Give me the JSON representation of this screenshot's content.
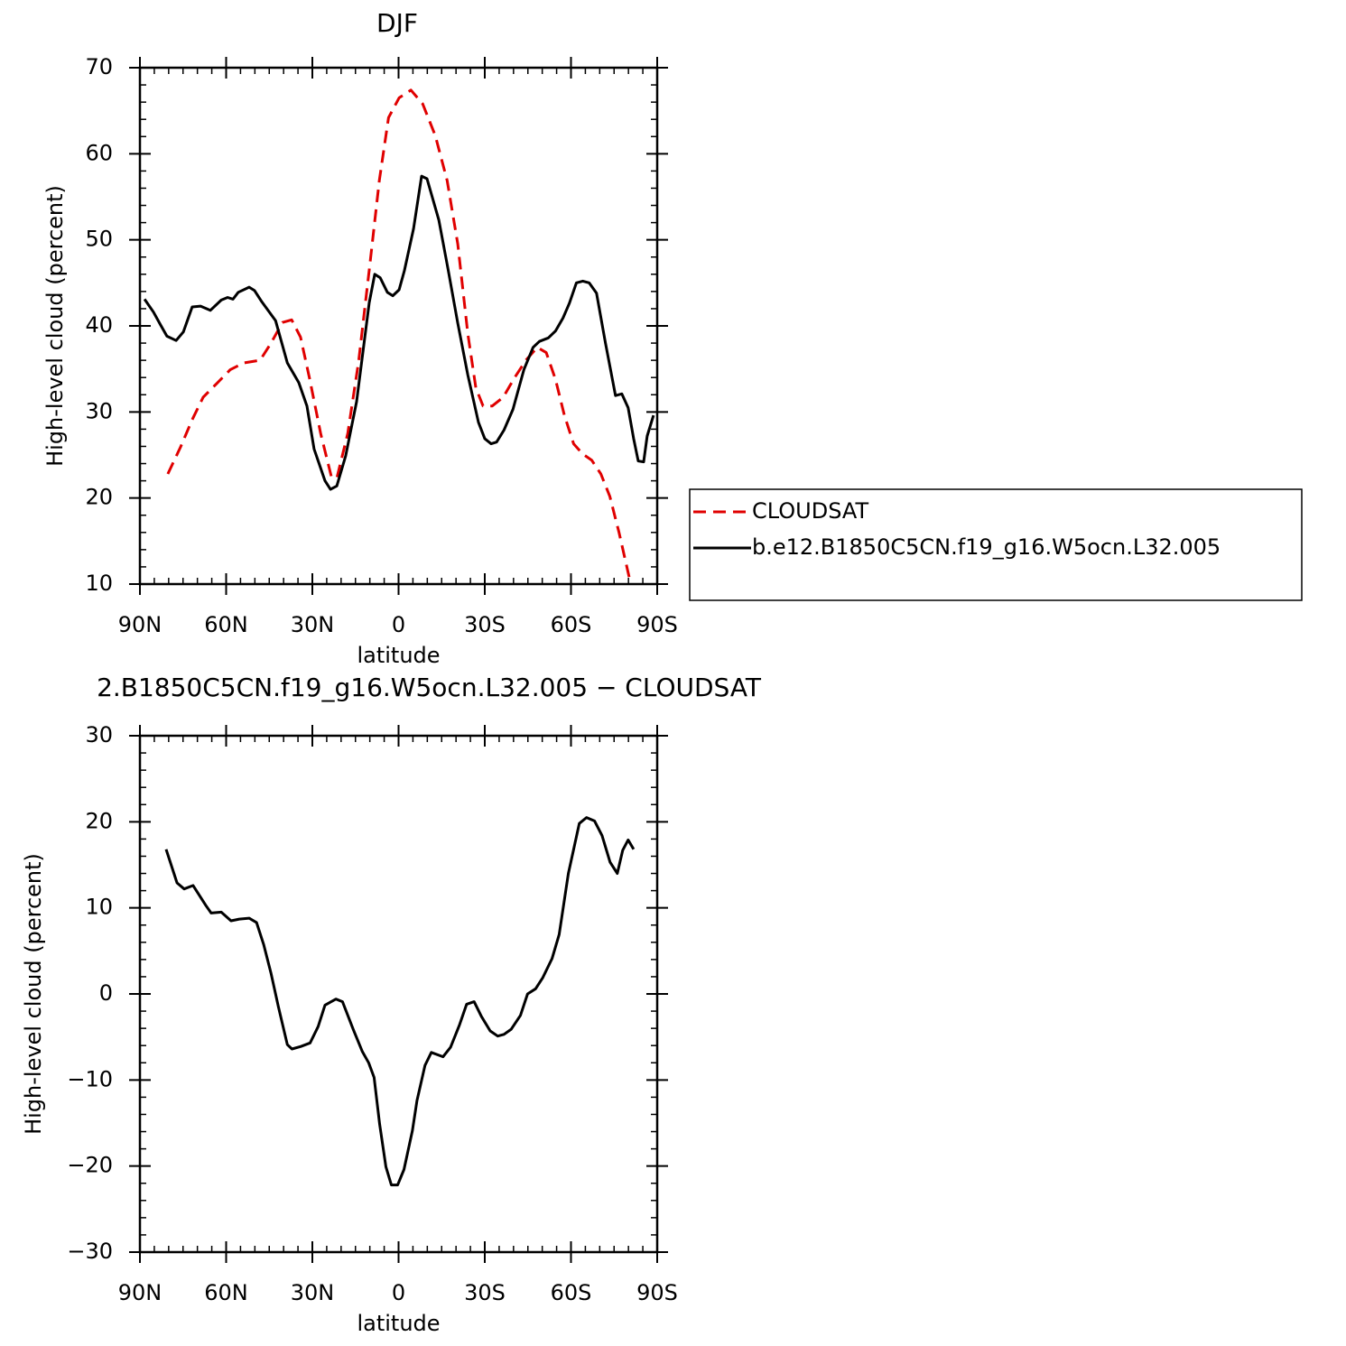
{
  "chart_data": [
    {
      "type": "line",
      "title": "DJF",
      "x_label": "latitude",
      "y_label": "High-level cloud (percent)",
      "xlim": [
        90,
        -90
      ],
      "xticks": [
        {
          "value": 90,
          "label": "90N"
        },
        {
          "value": 60,
          "label": "60N"
        },
        {
          "value": 30,
          "label": "30N"
        },
        0,
        {
          "value": -30,
          "label": "30S"
        },
        {
          "value": -60,
          "label": "60S"
        },
        {
          "value": -90,
          "label": "90S"
        }
      ],
      "ylim": [
        10,
        70
      ],
      "yticks": [
        10,
        20,
        30,
        40,
        50,
        60,
        70
      ],
      "legend": "right",
      "series": [
        {
          "name": "CLOUDSAT",
          "color": "#e00000",
          "dash": true,
          "x": [
            80.3,
            75.9,
            71.8,
            68.0,
            63.3,
            58.6,
            53.9,
            48.2,
            44.4,
            40.4,
            37.2,
            34.1,
            30.9,
            27.1,
            23.4,
            21.5,
            17.7,
            13.9,
            9.9,
            6.7,
            3.5,
            -0.2,
            -4.3,
            -8.4,
            -12.8,
            -16.9,
            -20.6,
            -24.1,
            -26.9,
            -29.4,
            -32.6,
            -36.4,
            -40.4,
            -44.5,
            -48.3,
            -51.4,
            -54.6,
            -57.7,
            -60.9,
            -64.1,
            -67.2,
            -70.4,
            -73.5,
            -76.7,
            -80.8
          ],
          "values": [
            22.8,
            25.9,
            29.1,
            31.7,
            33.3,
            34.9,
            35.7,
            36.0,
            38.0,
            40.4,
            40.7,
            38.7,
            33.8,
            27.5,
            22.5,
            22.3,
            27.5,
            35.9,
            47.4,
            56.9,
            64.2,
            66.5,
            67.4,
            65.8,
            62.1,
            56.9,
            49.5,
            39.1,
            32.8,
            30.7,
            30.7,
            31.7,
            34.0,
            36.1,
            37.5,
            36.9,
            33.8,
            29.6,
            26.3,
            25.1,
            24.4,
            22.8,
            20.2,
            16.0,
            10.0
          ]
        },
        {
          "name": "b.e12.B1850C5CN.f19_g16.W5ocn.L32.005",
          "color": "#000000",
          "dash": false,
          "x": [
            88.4,
            85.3,
            82.8,
            80.6,
            77.4,
            74.9,
            71.8,
            68.9,
            65.5,
            61.7,
            59.5,
            57.6,
            55.8,
            52.0,
            50.1,
            47.6,
            42.8,
            38.7,
            34.7,
            31.9,
            29.4,
            25.6,
            23.7,
            21.5,
            18.4,
            14.6,
            10.2,
            8.3,
            6.4,
            3.9,
            2.0,
            -0.2,
            -2.0,
            -5.2,
            -8.0,
            -9.9,
            -14.0,
            -17.2,
            -20.6,
            -24.1,
            -27.8,
            -30.0,
            -32.2,
            -34.1,
            -36.7,
            -39.8,
            -43.6,
            -46.8,
            -49.0,
            -52.1,
            -54.6,
            -57.2,
            -59.4,
            -61.9,
            -64.1,
            -66.3,
            -68.9,
            -72.0,
            -75.5,
            -77.7,
            -79.9,
            -81.8,
            -83.4,
            -85.3,
            -86.5,
            -88.7
          ],
          "values": [
            43.1,
            41.6,
            40.1,
            38.8,
            38.3,
            39.3,
            42.2,
            42.3,
            41.8,
            43.0,
            43.3,
            43.1,
            43.9,
            44.5,
            44.1,
            42.8,
            40.6,
            35.7,
            33.4,
            30.7,
            25.7,
            22.0,
            21.0,
            21.4,
            24.9,
            31.2,
            42.7,
            46.0,
            45.6,
            43.9,
            43.5,
            44.2,
            46.4,
            51.3,
            57.4,
            57.1,
            52.3,
            46.6,
            40.3,
            34.3,
            28.8,
            26.9,
            26.3,
            26.5,
            27.9,
            30.3,
            34.9,
            37.5,
            38.2,
            38.6,
            39.4,
            40.9,
            42.6,
            45.0,
            45.2,
            45.0,
            43.8,
            38.0,
            31.9,
            32.1,
            30.5,
            26.9,
            24.3,
            24.2,
            27.2,
            29.6
          ]
        }
      ]
    },
    {
      "type": "line",
      "title": "2.B1850C5CN.f19_g16.W5ocn.L32.005 − CLOUDSAT",
      "x_label": "latitude",
      "y_label": "High-level cloud (percent)",
      "xlim": [
        90,
        -90
      ],
      "xticks": [
        {
          "value": 90,
          "label": "90N"
        },
        {
          "value": 60,
          "label": "60N"
        },
        {
          "value": 30,
          "label": "30N"
        },
        0,
        {
          "value": -30,
          "label": "30S"
        },
        {
          "value": -60,
          "label": "60S"
        },
        {
          "value": -90,
          "label": "90S"
        }
      ],
      "ylim": [
        -30,
        30
      ],
      "yticks": [
        {
          "value": -30,
          "label": "−30"
        },
        {
          "value": -20,
          "label": "−20"
        },
        {
          "value": -10,
          "label": "−10"
        },
        0,
        10,
        20,
        30
      ],
      "series": [
        {
          "color": "#000000",
          "dash": false,
          "x": [
            80.9,
            77.1,
            74.6,
            71.5,
            67.1,
            65.2,
            61.7,
            58.3,
            55.4,
            52.0,
            49.4,
            46.9,
            44.4,
            41.8,
            38.7,
            37.1,
            34.0,
            30.8,
            28.0,
            25.6,
            21.8,
            19.5,
            15.8,
            12.6,
            10.4,
            8.5,
            6.6,
            4.4,
            2.5,
            0.3,
            -1.9,
            -4.8,
            -6.4,
            -9.2,
            -11.4,
            -15.5,
            -18.1,
            -21.2,
            -23.7,
            -26.3,
            -28.8,
            -31.9,
            -34.5,
            -36.7,
            -39.2,
            -42.4,
            -44.9,
            -47.7,
            -50.2,
            -53.4,
            -55.9,
            -59.1,
            -62.9,
            -65.4,
            -68.2,
            -70.8,
            -73.6,
            -76.1,
            -78.0,
            -79.9,
            -81.8
          ],
          "values": [
            16.8,
            12.9,
            12.2,
            12.6,
            10.3,
            9.4,
            9.5,
            8.5,
            8.7,
            8.8,
            8.3,
            5.7,
            2.4,
            -1.5,
            -5.9,
            -6.4,
            -6.1,
            -5.7,
            -3.8,
            -1.3,
            -0.6,
            -0.9,
            -4.1,
            -6.7,
            -8.0,
            -9.7,
            -15.1,
            -20.1,
            -22.2,
            -22.2,
            -20.4,
            -15.9,
            -12.4,
            -8.3,
            -6.8,
            -7.3,
            -6.2,
            -3.6,
            -1.2,
            -0.9,
            -2.6,
            -4.3,
            -4.9,
            -4.7,
            -4.1,
            -2.5,
            0.0,
            0.6,
            1.9,
            4.1,
            6.9,
            14.0,
            19.8,
            20.5,
            20.1,
            18.4,
            15.3,
            14.0,
            16.7,
            17.9,
            16.8
          ]
        }
      ]
    }
  ]
}
